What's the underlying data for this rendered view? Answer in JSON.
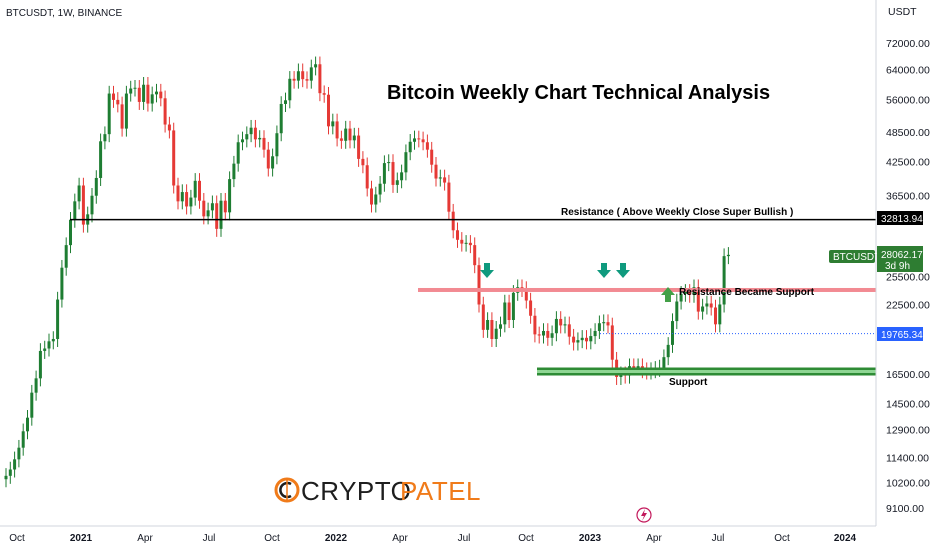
{
  "header": {
    "symbol_info": "BTCUSDT, 1W, BINANCE"
  },
  "title": "Bitcoin Weekly Chart Technical Analysis",
  "brand": {
    "part1": "CRYPTO",
    "part2": "PATEL",
    "accent_color": "#f07b1a"
  },
  "colors": {
    "up": "#1e7d32",
    "down": "#e53935",
    "resistance_line": "#000000",
    "support_zone": "#2e8b35",
    "flip_zone": "#f28a92",
    "arrow": "#0f9a7e",
    "up_arrow": "#43a047",
    "last_price_tag": "#2e7d32",
    "dotted_line": "#2962ff"
  },
  "chart_data": {
    "type": "candlestick",
    "symbol": "BTCUSDT",
    "exchange": "BINANCE",
    "interval": "1W",
    "title": "Bitcoin Weekly Chart Technical Analysis",
    "y_axis_unit": "USDT",
    "y_scale": "log",
    "y_ticks": [
      "72000.00",
      "64000.00",
      "56000.00",
      "48500.00",
      "42500.00",
      "36500.00",
      "25500.00",
      "22500.00",
      "16500.00",
      "14500.00",
      "12900.00",
      "11400.00",
      "10200.00",
      "9100.00"
    ],
    "x_ticks": [
      {
        "label": "Oct",
        "bold": false
      },
      {
        "label": "2021",
        "bold": true
      },
      {
        "label": "Apr",
        "bold": false
      },
      {
        "label": "Jul",
        "bold": false
      },
      {
        "label": "Oct",
        "bold": false
      },
      {
        "label": "2022",
        "bold": true
      },
      {
        "label": "Apr",
        "bold": false
      },
      {
        "label": "Jul",
        "bold": false
      },
      {
        "label": "Oct",
        "bold": false
      },
      {
        "label": "2023",
        "bold": true
      },
      {
        "label": "Apr",
        "bold": false
      },
      {
        "label": "Jul",
        "bold": false
      },
      {
        "label": "Oct",
        "bold": false
      },
      {
        "label": "2024",
        "bold": true
      }
    ],
    "price_tags": {
      "resistance": "32813.94",
      "last_price": "28062.17",
      "last_symbol": "BTCUSDT",
      "countdown": "3d 9h",
      "dotted_level": "19765.34"
    },
    "levels": {
      "resistance": {
        "price": 32813.94,
        "label": "Resistance ( Above Weekly Close Super Bullish )"
      },
      "flip_zone": {
        "price": 24000,
        "label": "Resistance Became Support"
      },
      "support": {
        "price": 16700,
        "label": "Support"
      },
      "dotted": {
        "price": 19765.34
      }
    },
    "closes": [
      10500,
      10800,
      11300,
      11900,
      12800,
      13600,
      15200,
      16200,
      18300,
      18500,
      19100,
      19300,
      23000,
      26500,
      29300,
      32800,
      35600,
      38200,
      32100,
      33600,
      36500,
      39500,
      46500,
      48000,
      57500,
      55900,
      54800,
      49200,
      57500,
      58800,
      59000,
      55400,
      59800,
      55000,
      57300,
      58000,
      56300,
      50100,
      48800,
      38200,
      35600,
      37100,
      34800,
      36200,
      39000,
      35700,
      33300,
      34200,
      35300,
      31500,
      35700,
      33900,
      39300,
      42100,
      46300,
      46900,
      48000,
      49400,
      46900,
      47200,
      44800,
      41200,
      43500,
      48200,
      54900,
      55800,
      61400,
      60900,
      63500,
      61300,
      60900,
      64600,
      65500,
      57600,
      57200,
      49700,
      50800,
      47100,
      46600,
      49200,
      46700,
      47700,
      43000,
      41800,
      37700,
      35100,
      36700,
      38500,
      42200,
      42400,
      38300,
      39100,
      40500,
      44300,
      46400,
      47100,
      46900,
      46300,
      44800,
      41900,
      39400,
      39600,
      38700,
      34000,
      31300,
      30000,
      29500,
      29600,
      29300,
      26800,
      22500,
      20100,
      21000,
      19300,
      20200,
      20600,
      22700,
      21000,
      23700,
      24300,
      24100,
      22900,
      21400,
      19700,
      19600,
      20000,
      19400,
      19800,
      21100,
      20500,
      20600,
      19500,
      19000,
      19200,
      19400,
      19100,
      19550,
      20000,
      20700,
      20800,
      20500,
      17600,
      16300,
      16500,
      16400,
      17100,
      17000,
      17100,
      16800,
      16700,
      16800,
      16900,
      17000,
      17800,
      18800,
      20900,
      22800,
      23600,
      23800,
      23500,
      24300,
      21800,
      22300,
      22600,
      22200,
      20600,
      22500,
      27900,
      28062
    ],
    "annotations": [
      {
        "type": "horizontal_line",
        "label": "Resistance ( Above Weekly Close Super Bullish )",
        "price": 32813.94
      },
      {
        "type": "zone",
        "label": "Resistance Became Support",
        "price": 24000
      },
      {
        "type": "zone",
        "label": "Support",
        "price": 16700
      },
      {
        "type": "down_arrows",
        "count": 3
      },
      {
        "type": "up_arrow",
        "count": 1
      }
    ]
  }
}
